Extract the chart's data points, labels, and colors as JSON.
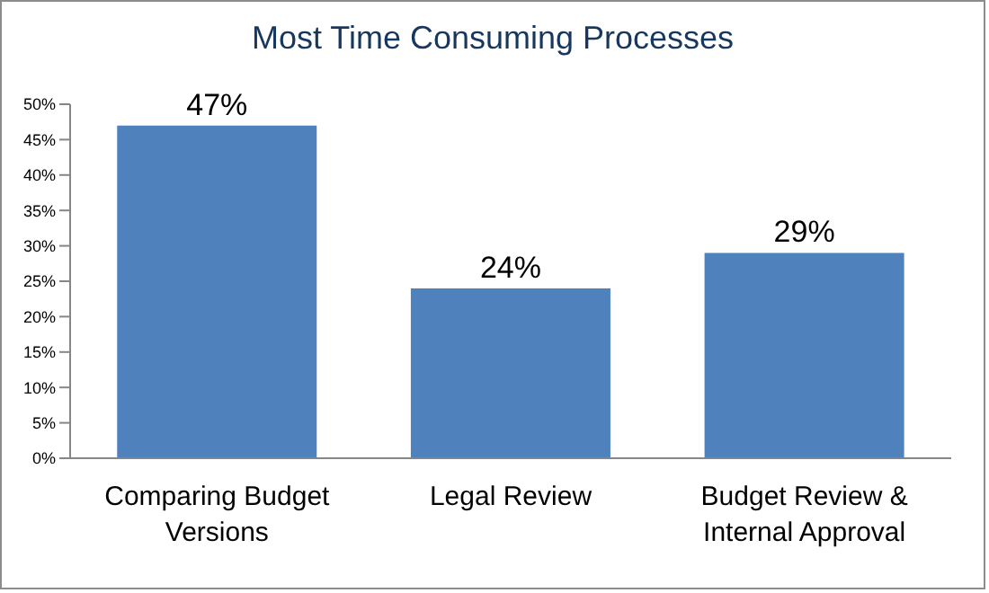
{
  "chart_data": {
    "type": "bar",
    "title": "Most Time Consuming Processes",
    "categories": [
      "Comparing Budget Versions",
      "Legal Review",
      "Budget Review & Internal Approval"
    ],
    "values": [
      47,
      24,
      29
    ],
    "color": "#4f81bd",
    "value_labels": [
      "47%",
      "24%",
      "29%"
    ],
    "ylim": [
      0,
      50
    ],
    "yticks": [
      {
        "value": 0,
        "label": "0%"
      },
      {
        "value": 5,
        "label": "5%"
      },
      {
        "value": 10,
        "label": "10%"
      },
      {
        "value": 15,
        "label": "15%"
      },
      {
        "value": 20,
        "label": "20%"
      },
      {
        "value": 25,
        "label": "25%"
      },
      {
        "value": 30,
        "label": "30%"
      },
      {
        "value": 35,
        "label": "35%"
      },
      {
        "value": 40,
        "label": "40%"
      },
      {
        "value": 45,
        "label": "45%"
      },
      {
        "value": 50,
        "label": "50%"
      }
    ],
    "grid": false,
    "legend": false
  }
}
